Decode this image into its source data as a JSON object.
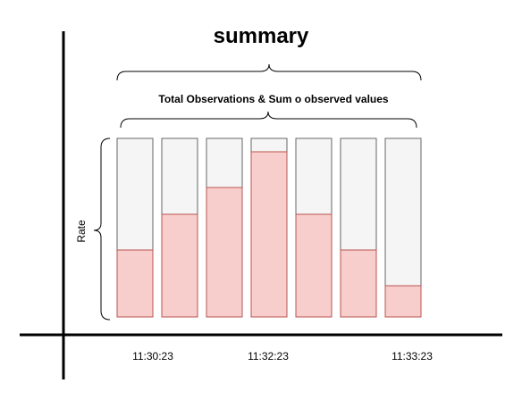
{
  "title": "summary",
  "subtitle": "Total Observations & Sum o observed values",
  "y_label": "Rate",
  "tick_labels": [
    "11:30:23",
    "11:32:23",
    "11:33:23"
  ],
  "colors": {
    "fill": "#f8cecc",
    "fill_stroke": "#b85450",
    "empty": "#f5f5f5",
    "empty_stroke": "#666666",
    "axis": "#000000"
  },
  "chart_data": {
    "type": "bar",
    "title": "summary",
    "subtitle": "Total Observations & Sum o observed values",
    "ylabel": "Rate",
    "xlabel": "",
    "ylim": [
      0,
      1
    ],
    "grid": false,
    "x_tick_labels": [
      "11:30:23",
      "11:32:23",
      "11:33:23"
    ],
    "values": [
      0.375,
      0.575,
      0.725,
      0.925,
      0.575,
      0.375,
      0.175
    ]
  }
}
